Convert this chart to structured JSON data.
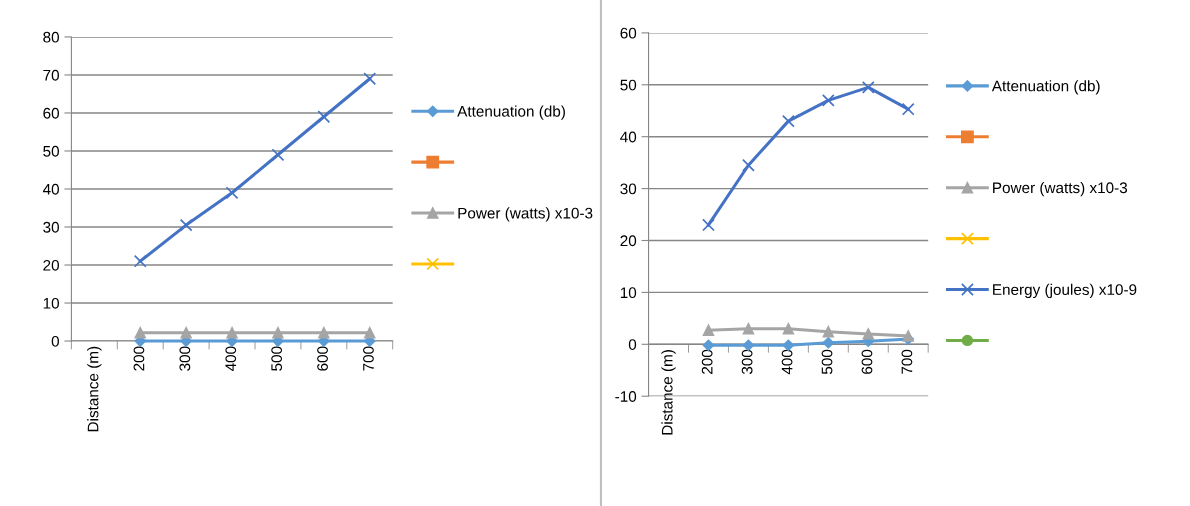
{
  "chart_data": [
    {
      "type": "line",
      "categories": [
        "Distance (m)",
        "200",
        "300",
        "400",
        "500",
        "600",
        "700"
      ],
      "ylim": [
        0,
        80
      ],
      "yticks": [
        0,
        10,
        20,
        30,
        40,
        50,
        60,
        70,
        80
      ],
      "grid": "y",
      "legend": "right",
      "series": [
        {
          "name": "Attenuation (db)",
          "color": "#5b9bd5",
          "marker": "diamond",
          "values": [
            null,
            0,
            0,
            0,
            0,
            0,
            0
          ]
        },
        {
          "color": "#ed7d31",
          "marker": "square",
          "values": [
            null,
            null,
            null,
            null,
            null,
            null,
            null
          ]
        },
        {
          "name": "Power (watts) x10-3",
          "color": "#a5a5a5",
          "marker": "triangle",
          "values": [
            null,
            2.2,
            2.2,
            2.2,
            2.2,
            2.2,
            2.2
          ]
        },
        {
          "color": "#ffc000",
          "marker": "cross",
          "values": [
            null,
            null,
            null,
            null,
            null,
            null,
            null
          ]
        },
        {
          "color": "#4472c4",
          "marker": "cross",
          "values": [
            null,
            21,
            30.5,
            39,
            49,
            59,
            69
          ]
        }
      ]
    },
    {
      "type": "line",
      "categories": [
        "Distance (m)",
        "200",
        "300",
        "400",
        "500",
        "600",
        "700"
      ],
      "ylim": [
        -10,
        60
      ],
      "yticks": [
        -10,
        0,
        10,
        20,
        30,
        40,
        50,
        60
      ],
      "grid": "y",
      "legend": "right",
      "series": [
        {
          "name": "Attenuation (db)",
          "color": "#5b9bd5",
          "marker": "diamond",
          "values": [
            null,
            -0.2,
            -0.2,
            -0.2,
            0.3,
            0.6,
            1.0
          ]
        },
        {
          "color": "#ed7d31",
          "marker": "square",
          "values": [
            null,
            null,
            null,
            null,
            null,
            null,
            null
          ]
        },
        {
          "name": "Power (watts) x10-3",
          "color": "#a5a5a5",
          "marker": "triangle",
          "values": [
            null,
            2.7,
            3.0,
            3.0,
            2.4,
            2.0,
            1.6
          ]
        },
        {
          "color": "#ffc000",
          "marker": "cross",
          "values": [
            null,
            null,
            null,
            null,
            null,
            null,
            null
          ]
        },
        {
          "name": "Energy (joules) x10-9",
          "color": "#4472c4",
          "marker": "cross",
          "values": [
            null,
            23,
            34.5,
            43,
            47,
            49.5,
            45.3
          ]
        },
        {
          "color": "#70ad47",
          "marker": "circle",
          "values": [
            null,
            null,
            null,
            null,
            null,
            null,
            null
          ]
        }
      ]
    }
  ]
}
